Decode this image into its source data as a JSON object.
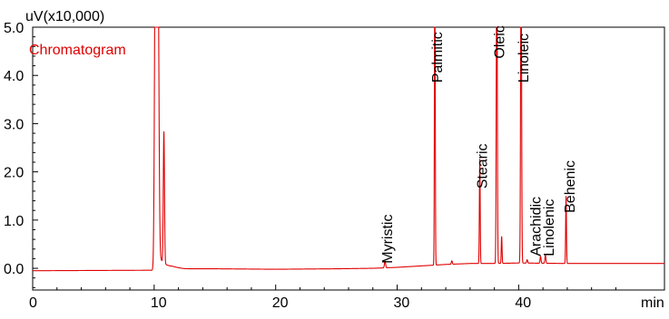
{
  "chart_data": {
    "type": "line",
    "title": "Chromatogram",
    "ylabel": "uV(x10,000)",
    "xlabel": "min",
    "xlim": [
      0,
      52
    ],
    "ylim": [
      -0.45,
      5.0
    ],
    "x_ticks": [
      0,
      10,
      20,
      30,
      40
    ],
    "y_ticks": [
      0.0,
      1.0,
      2.0,
      3.0,
      4.0,
      5.0
    ],
    "x_tick_labels": [
      "0",
      "10",
      "20",
      "30",
      "40"
    ],
    "y_tick_labels": [
      "0.0",
      "1.0",
      "2.0",
      "3.0",
      "4.0",
      "5.0"
    ],
    "grid": false,
    "series": [
      {
        "name": "",
        "color": "#e00000",
        "baseline": [
          [
            0,
            -0.05
          ],
          [
            9.9,
            -0.04
          ],
          [
            11.5,
            0.02
          ],
          [
            12.5,
            -0.01
          ],
          [
            15,
            -0.01
          ],
          [
            20,
            -0.02
          ],
          [
            25,
            -0.01
          ],
          [
            28,
            0.0
          ],
          [
            30,
            0.02
          ],
          [
            32,
            0.05
          ],
          [
            34,
            0.08
          ],
          [
            36,
            0.1
          ],
          [
            38,
            0.1
          ],
          [
            40,
            0.11
          ],
          [
            44,
            0.1
          ],
          [
            48,
            0.1
          ],
          [
            52,
            0.1
          ]
        ],
        "peaks": [
          {
            "rt": 10.1,
            "height": 5.0,
            "width": 0.18
          },
          {
            "rt": 10.3,
            "height": 5.0,
            "width": 0.2
          },
          {
            "rt": 10.8,
            "height": 1.95,
            "width": 0.12
          },
          {
            "rt": 29.0,
            "height": 0.1,
            "width": 0.12
          },
          {
            "rt": 33.1,
            "height": 5.0,
            "width": 0.08
          },
          {
            "rt": 34.5,
            "height": 0.05,
            "width": 0.1
          },
          {
            "rt": 36.8,
            "height": 1.55,
            "width": 0.08
          },
          {
            "rt": 38.2,
            "height": 5.0,
            "width": 0.1
          },
          {
            "rt": 38.6,
            "height": 0.4,
            "width": 0.08
          },
          {
            "rt": 40.2,
            "height": 5.0,
            "width": 0.1
          },
          {
            "rt": 40.7,
            "height": 0.05,
            "width": 0.1
          },
          {
            "rt": 41.8,
            "height": 0.1,
            "width": 0.1
          },
          {
            "rt": 42.2,
            "height": 0.12,
            "width": 0.1
          },
          {
            "rt": 43.9,
            "height": 1.0,
            "width": 0.08
          }
        ]
      }
    ],
    "annotations": [
      {
        "text": "Myristic",
        "x": 29.0,
        "y": 0.1
      },
      {
        "text": "Palmitic",
        "x": 33.1,
        "y": 3.85
      },
      {
        "text": "Stearic",
        "x": 36.8,
        "y": 1.65
      },
      {
        "text": "Oleic",
        "x": 38.2,
        "y": 4.35
      },
      {
        "text": "Linoleic",
        "x": 40.2,
        "y": 3.85
      },
      {
        "text": "Arachidic",
        "x": 41.2,
        "y": 0.25
      },
      {
        "text": "Linolenic",
        "x": 42.3,
        "y": 0.25
      },
      {
        "text": "Behenic",
        "x": 44.0,
        "y": 1.15
      }
    ]
  }
}
